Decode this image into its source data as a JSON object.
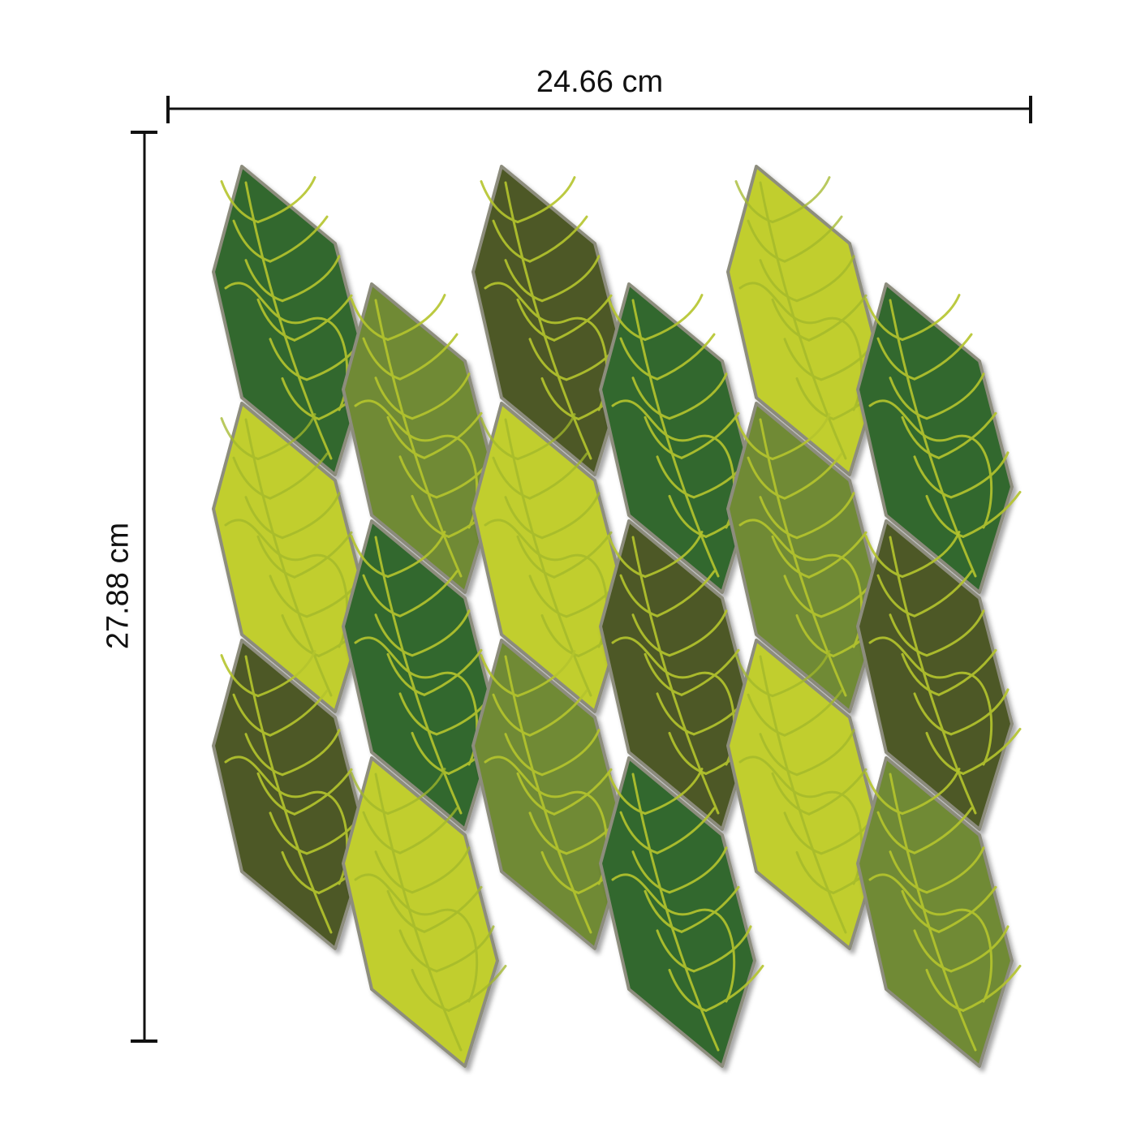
{
  "dimensions": {
    "width_label": "24.66 cm",
    "height_label": "27.88 cm"
  },
  "tile_palette": {
    "forest": "#33682f",
    "olive": "#708a35",
    "lime": "#c1ce2e",
    "moss": "#4e5825",
    "vein": "#b5c52d",
    "edge": "#8d8d7d"
  },
  "tiles": [
    {
      "column": 1,
      "row": 1,
      "color": "forest"
    },
    {
      "column": 1,
      "row": 2,
      "color": "lime"
    },
    {
      "column": 1,
      "row": 3,
      "color": "moss"
    },
    {
      "column": 2,
      "row": 1,
      "color": "olive"
    },
    {
      "column": 2,
      "row": 2,
      "color": "forest"
    },
    {
      "column": 2,
      "row": 3,
      "color": "lime"
    },
    {
      "column": 3,
      "row": 1,
      "color": "moss"
    },
    {
      "column": 3,
      "row": 2,
      "color": "lime"
    },
    {
      "column": 3,
      "row": 3,
      "color": "olive"
    },
    {
      "column": 4,
      "row": 1,
      "color": "forest"
    },
    {
      "column": 4,
      "row": 2,
      "color": "moss"
    },
    {
      "column": 4,
      "row": 3,
      "color": "forest"
    },
    {
      "column": 5,
      "row": 1,
      "color": "lime"
    },
    {
      "column": 5,
      "row": 2,
      "color": "olive"
    },
    {
      "column": 5,
      "row": 3,
      "color": "lime"
    },
    {
      "column": 6,
      "row": 1,
      "color": "forest"
    },
    {
      "column": 6,
      "row": 2,
      "color": "moss"
    },
    {
      "column": 6,
      "row": 3,
      "color": "olive"
    }
  ]
}
